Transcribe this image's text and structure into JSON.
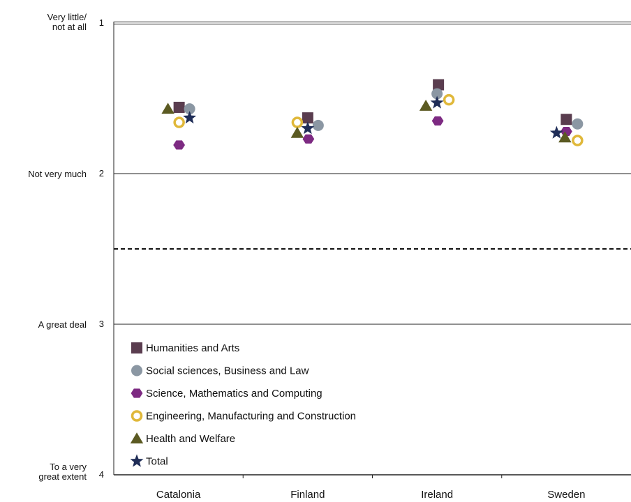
{
  "chart_data": {
    "type": "scatter",
    "title": "",
    "xlabel": "",
    "ylabel": "",
    "categories": [
      "Catalonia",
      "Finland",
      "Ireland",
      "Sweden"
    ],
    "y_axis": {
      "range": [
        1,
        4
      ],
      "inverted": true,
      "ticks": [
        1,
        2,
        3,
        4
      ],
      "tick_labels": [
        "1",
        "2",
        "3",
        "4"
      ],
      "descriptors": [
        {
          "value": 1,
          "lines": [
            "Very little/",
            "not at all"
          ]
        },
        {
          "value": 2,
          "lines": [
            "Not very much"
          ]
        },
        {
          "value": 3,
          "lines": [
            "A great deal"
          ]
        },
        {
          "value": 4,
          "lines": [
            "To a very",
            "great extent"
          ]
        }
      ],
      "reference_line": 2.5
    },
    "grid": true,
    "legend_position": "bottom-left",
    "series": [
      {
        "name": "Humanities and Arts",
        "marker": "square",
        "color": "#5a3d4f",
        "values": [
          1.56,
          1.63,
          1.41,
          1.64
        ]
      },
      {
        "name": "Social sciences, Business and Law",
        "marker": "circle",
        "color": "#8b97a3",
        "values": [
          1.57,
          1.68,
          1.47,
          1.67
        ]
      },
      {
        "name": "Science, Mathematics and Computing",
        "marker": "hexagon",
        "color": "#7d2a82",
        "values": [
          1.81,
          1.77,
          1.65,
          1.72
        ]
      },
      {
        "name": "Engineering, Manufacturing and Construction",
        "marker": "ring",
        "color": "#e0b83a",
        "values": [
          1.66,
          1.66,
          1.51,
          1.78
        ]
      },
      {
        "name": "Health and Welfare",
        "marker": "triangle",
        "color": "#5b5a22",
        "values": [
          1.57,
          1.73,
          1.55,
          1.76
        ]
      },
      {
        "name": "Total",
        "marker": "star",
        "color": "#1f2d57",
        "values": [
          1.63,
          1.7,
          1.53,
          1.73
        ]
      }
    ]
  }
}
